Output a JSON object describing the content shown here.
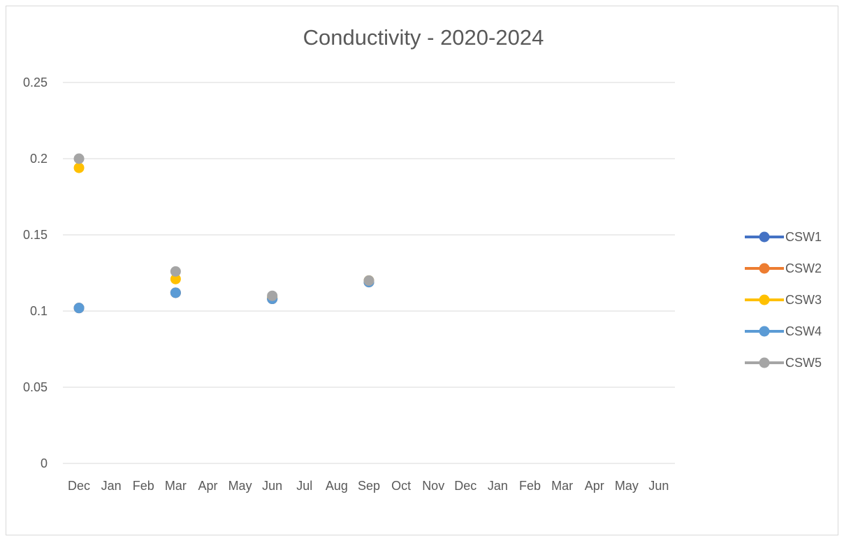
{
  "chart_data": {
    "type": "scatter",
    "title": "Conductivity - 2020-2024",
    "xlabel": "",
    "ylabel": "",
    "x_categories": [
      "Dec",
      "Jan",
      "Feb",
      "Mar",
      "Apr",
      "May",
      "Jun",
      "Jul",
      "Aug",
      "Sep",
      "Oct",
      "Nov",
      "Dec",
      "Jan",
      "Feb",
      "Mar",
      "Apr",
      "May",
      "Jun"
    ],
    "ylim": [
      0,
      0.25
    ],
    "y_ticks": [
      "0",
      "0.05",
      "0.1",
      "0.15",
      "0.2",
      "0.25"
    ],
    "grid": "horizontal",
    "legend_position": "right",
    "series": [
      {
        "name": "CSW1",
        "color": "#4472C4",
        "points": [
          [
            0,
            0.102
          ],
          [
            3,
            0.112
          ],
          [
            6,
            0.108
          ],
          [
            9,
            0.119
          ]
        ]
      },
      {
        "name": "CSW2",
        "color": "#ED7D31",
        "points": [
          [
            0,
            0.102
          ],
          [
            3,
            0.112
          ],
          [
            6,
            0.108
          ],
          [
            9,
            0.119
          ]
        ]
      },
      {
        "name": "CSW3",
        "color": "#FFC000",
        "points": [
          [
            0,
            0.194
          ],
          [
            3,
            0.121
          ],
          [
            6,
            0.109
          ],
          [
            9,
            0.12
          ]
        ]
      },
      {
        "name": "CSW4",
        "color": "#5B9BD5",
        "points": [
          [
            0,
            0.102
          ],
          [
            3,
            0.112
          ],
          [
            6,
            0.108
          ],
          [
            9,
            0.119
          ]
        ]
      },
      {
        "name": "CSW5",
        "color": "#A5A5A5",
        "points": [
          [
            0,
            0.2
          ],
          [
            3,
            0.126
          ],
          [
            6,
            0.11
          ],
          [
            9,
            0.12
          ]
        ]
      }
    ]
  }
}
